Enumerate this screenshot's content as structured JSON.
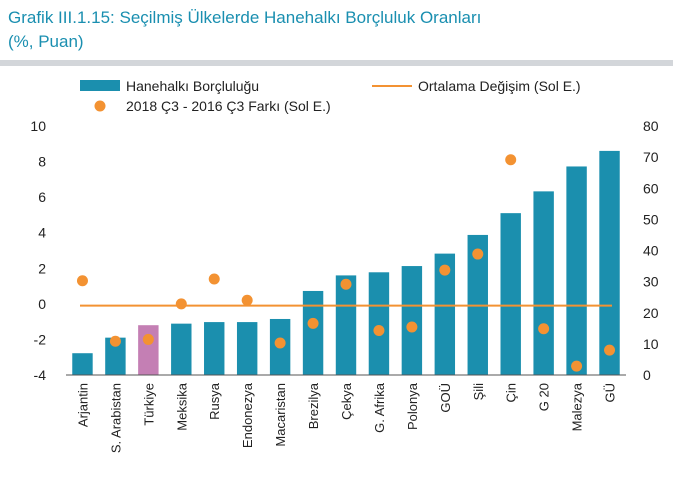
{
  "title": {
    "line1": "Grafik III.1.15: Seçilmiş Ülkelerde Hanehalkı Borçluluk Oranları",
    "line2": "(%, Puan)"
  },
  "colors": {
    "title": "#1a8fb0",
    "bar": "#1b8fae",
    "bar_highlight": "#c47fb4",
    "line": "#f39232",
    "dot": "#f39232",
    "rule": "#d3d6da"
  },
  "chart_data": {
    "type": "bar",
    "categories": [
      "Arjantin",
      "S. Arabistan",
      "Türkiye",
      "Meksika",
      "Rusya",
      "Endonezya",
      "Macaristan",
      "Brezilya",
      "Çekya",
      "G. Afrika",
      "Polonya",
      "GOÜ",
      "Şili",
      "Çin",
      "G 20",
      "Malezya",
      "GÜ"
    ],
    "highlight_category": "Türkiye",
    "series": [
      {
        "name": "Hanehalkı Borçluluğu",
        "type": "bar",
        "axis": "right",
        "values": [
          7,
          12,
          16,
          16.5,
          17,
          17,
          18,
          27,
          32,
          33,
          35,
          39,
          45,
          52,
          59,
          67,
          72
        ]
      },
      {
        "name": "Ortalama Değişim (Sol E.)",
        "type": "line",
        "axis": "left",
        "values": [
          -0.1,
          -0.1,
          -0.1,
          -0.1,
          -0.1,
          -0.1,
          -0.1,
          -0.1,
          -0.1,
          -0.1,
          -0.1,
          -0.1,
          -0.1,
          -0.1,
          -0.1,
          -0.1,
          -0.1
        ]
      },
      {
        "name": "2018 Ç3 - 2016 Ç3 Farkı (Sol E.)",
        "type": "scatter",
        "axis": "left",
        "values": [
          1.3,
          -2.1,
          -2.0,
          0.0,
          1.4,
          0.2,
          -2.2,
          -1.1,
          1.1,
          -1.5,
          -1.3,
          1.9,
          2.8,
          8.1,
          -1.4,
          -3.5,
          -2.6
        ]
      }
    ],
    "y_left": {
      "ylim": [
        -4,
        10
      ],
      "ticks": [
        "-4",
        "-2",
        "0",
        "2",
        "4",
        "6",
        "8",
        "10"
      ]
    },
    "y_right": {
      "ylim": [
        0,
        80
      ],
      "ticks": [
        "0",
        "10",
        "20",
        "30",
        "40",
        "50",
        "60",
        "70",
        "80"
      ]
    },
    "legend": {
      "placement": "top",
      "items": [
        "Hanehalkı Borçluluğu",
        "Ortalama Değişim (Sol E.)",
        "2018 Ç3 - 2016 Ç3 Farkı (Sol E.)"
      ]
    },
    "grid": false
  }
}
